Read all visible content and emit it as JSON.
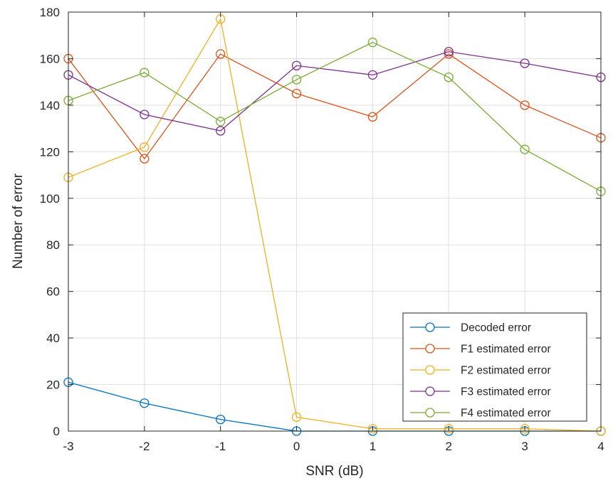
{
  "chart_data": {
    "type": "line",
    "xlabel": "SNR (dB)",
    "ylabel": "Number of error",
    "xlim": [
      -3,
      4
    ],
    "ylim": [
      0,
      180
    ],
    "x": [
      -3,
      -2,
      -1,
      0,
      1,
      2,
      3,
      4
    ],
    "x_ticks": [
      "-3",
      "-2",
      "-1",
      "0",
      "1",
      "2",
      "3",
      "4"
    ],
    "y_ticks": [
      "0",
      "20",
      "40",
      "60",
      "80",
      "100",
      "120",
      "140",
      "160",
      "180"
    ],
    "grid": true,
    "legend_position": "bottom-right",
    "marker": "circle",
    "series": [
      {
        "name": "Decoded error",
        "color": "#0072BD",
        "values": [
          21,
          12,
          5,
          0,
          0,
          0,
          0,
          0
        ]
      },
      {
        "name": "F1 estimated error",
        "color": "#D95319",
        "values": [
          160,
          117,
          162,
          145,
          135,
          162,
          140,
          126
        ]
      },
      {
        "name": "F2 estimated error",
        "color": "#EDB120",
        "values": [
          109,
          122,
          177,
          6,
          1,
          1,
          1,
          0
        ]
      },
      {
        "name": "F3 estimated error",
        "color": "#7E2F8E",
        "values": [
          153,
          136,
          129,
          157,
          153,
          163,
          158,
          152
        ]
      },
      {
        "name": "F4 estimated error",
        "color": "#77AC30",
        "values": [
          142,
          154,
          133,
          151,
          167,
          152,
          121,
          103
        ]
      }
    ]
  }
}
